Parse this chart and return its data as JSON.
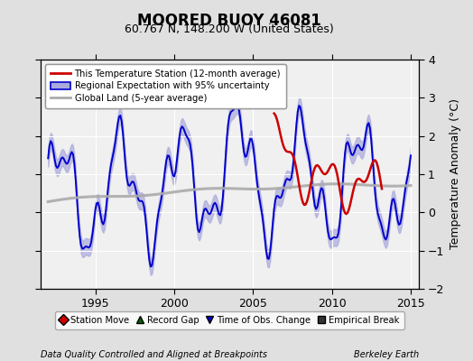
{
  "title": "MOORED BUOY 46081",
  "subtitle": "60.767 N, 148.200 W (United States)",
  "ylabel": "Temperature Anomaly (°C)",
  "footer_left": "Data Quality Controlled and Aligned at Breakpoints",
  "footer_right": "Berkeley Earth",
  "ylim": [
    -2,
    4
  ],
  "xlim": [
    1991.5,
    2015.5
  ],
  "yticks": [
    -2,
    -1,
    0,
    1,
    2,
    3,
    4
  ],
  "xticks": [
    1995,
    2000,
    2005,
    2010,
    2015
  ],
  "bg_color": "#e0e0e0",
  "plot_bg_color": "#f0f0f0",
  "grid_color": "#ffffff",
  "blue_line_color": "#0000cc",
  "blue_fill_color": "#aaaadd",
  "red_line_color": "#cc0000",
  "gray_line_color": "#aaaaaa",
  "legend1_labels": [
    "This Temperature Station (12-month average)",
    "Regional Expectation with 95% uncertainty",
    "Global Land (5-year average)"
  ],
  "legend2_labels": [
    "Station Move",
    "Record Gap",
    "Time of Obs. Change",
    "Empirical Break"
  ],
  "legend2_markers": [
    "D",
    "^",
    "v",
    "s"
  ],
  "legend2_colors": [
    "#cc0000",
    "#006600",
    "#0000cc",
    "#333333"
  ]
}
